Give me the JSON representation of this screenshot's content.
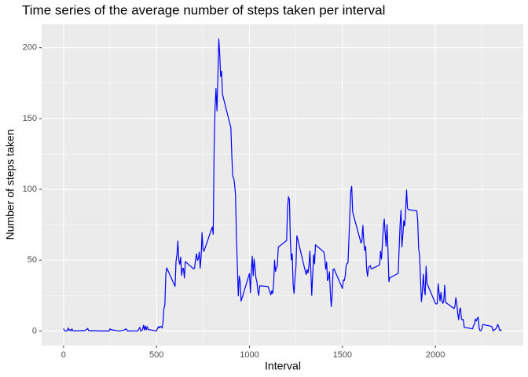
{
  "chart_data": {
    "type": "line",
    "title": "Time series of the average number of steps taken per interval",
    "x_label": "Interval",
    "y_label": "Number of steps taken",
    "xlim": [
      -117.75,
      2472.75
    ],
    "ylim": [
      -10.31,
      216.48
    ],
    "xticks": [
      0,
      500,
      1000,
      1500,
      2000
    ],
    "yticks": [
      0,
      50,
      100,
      150,
      200
    ],
    "xminor": [
      250,
      750,
      1250,
      1750,
      2250
    ],
    "yminor": [
      25,
      75,
      125,
      175
    ],
    "grid": true,
    "series": [
      {
        "color": "#0000ff",
        "x": [
          0,
          5,
          10,
          20,
          25,
          30,
          35,
          40,
          45,
          50,
          55,
          100,
          110,
          125,
          130,
          135,
          150,
          200,
          230,
          245,
          250,
          255,
          300,
          330,
          335,
          345,
          400,
          410,
          415,
          420,
          425,
          430,
          435,
          440,
          445,
          450,
          455,
          500,
          505,
          510,
          515,
          520,
          525,
          530,
          535,
          540,
          545,
          550,
          555,
          600,
          605,
          610,
          615,
          620,
          625,
          630,
          635,
          640,
          645,
          650,
          655,
          700,
          705,
          710,
          715,
          720,
          725,
          730,
          735,
          740,
          745,
          750,
          755,
          800,
          805,
          810,
          815,
          820,
          825,
          830,
          835,
          840,
          845,
          850,
          855,
          900,
          905,
          910,
          915,
          920,
          925,
          930,
          935,
          940,
          945,
          950,
          955,
          1000,
          1005,
          1010,
          1015,
          1020,
          1025,
          1030,
          1035,
          1040,
          1045,
          1050,
          1055,
          1100,
          1115,
          1120,
          1125,
          1130,
          1135,
          1140,
          1145,
          1150,
          1155,
          1200,
          1205,
          1210,
          1215,
          1220,
          1225,
          1230,
          1235,
          1240,
          1245,
          1250,
          1255,
          1300,
          1305,
          1310,
          1315,
          1320,
          1325,
          1330,
          1335,
          1340,
          1345,
          1350,
          1355,
          1400,
          1405,
          1410,
          1415,
          1420,
          1425,
          1430,
          1435,
          1440,
          1445,
          1450,
          1455,
          1500,
          1505,
          1510,
          1515,
          1520,
          1525,
          1530,
          1535,
          1540,
          1545,
          1550,
          1555,
          1600,
          1605,
          1610,
          1615,
          1620,
          1625,
          1630,
          1635,
          1640,
          1645,
          1650,
          1655,
          1700,
          1705,
          1710,
          1715,
          1720,
          1725,
          1730,
          1735,
          1740,
          1745,
          1750,
          1755,
          1800,
          1805,
          1810,
          1815,
          1820,
          1825,
          1830,
          1835,
          1840,
          1845,
          1850,
          1855,
          1900,
          1905,
          1910,
          1915,
          1920,
          1925,
          1930,
          1935,
          1940,
          1945,
          1950,
          1955,
          2000,
          2005,
          2010,
          2015,
          2020,
          2025,
          2030,
          2035,
          2040,
          2045,
          2050,
          2055,
          2100,
          2105,
          2110,
          2115,
          2120,
          2125,
          2130,
          2135,
          2140,
          2145,
          2150,
          2155,
          2200,
          2205,
          2210,
          2215,
          2220,
          2225,
          2230,
          2235,
          2240,
          2245,
          2250,
          2255,
          2300,
          2305,
          2310,
          2315,
          2320,
          2325,
          2330,
          2335,
          2340,
          2345,
          2350,
          2355
        ],
        "values": [
          1.7,
          0.3,
          0.1,
          0.1,
          2.1,
          0.5,
          0.9,
          0,
          1.5,
          0.3,
          0.1,
          0.3,
          0.2,
          1.1,
          1.8,
          0.2,
          0.3,
          0,
          0,
          0,
          1.5,
          0.9,
          0,
          0.8,
          1.6,
          0,
          0.1,
          2.6,
          0,
          0.3,
          1.1,
          4.1,
          0.7,
          3.5,
          0.8,
          3.1,
          1.1,
          0,
          1.6,
          3.0,
          2.2,
          3.3,
          3.0,
          2.1,
          6.1,
          16.0,
          18.3,
          39.5,
          44.5,
          31.5,
          49.3,
          53.8,
          63.5,
          50.0,
          47.1,
          52.2,
          39.3,
          44.0,
          44.2,
          37.4,
          49.0,
          43.8,
          44.4,
          50.5,
          54.5,
          49.9,
          51.0,
          55.7,
          44.3,
          52.3,
          69.5,
          57.8,
          56.2,
          73.4,
          68.2,
          129.4,
          157.5,
          171.2,
          155.4,
          177.3,
          206.2,
          195.9,
          179.6,
          183.4,
          167.0,
          143.5,
          124.0,
          109.1,
          108.1,
          103.7,
          95.9,
          66.2,
          45.2,
          24.8,
          38.8,
          35.0,
          21.1,
          40.6,
          27.0,
          42.4,
          52.7,
          38.9,
          50.8,
          44.3,
          37.4,
          34.7,
          28.3,
          25.1,
          31.9,
          31.4,
          25.5,
          28.4,
          26.5,
          33.4,
          50.0,
          42.0,
          44.6,
          46.0,
          59.2,
          63.9,
          87.7,
          94.8,
          92.8,
          63.4,
          50.2,
          54.5,
          32.4,
          26.5,
          37.7,
          45.1,
          67.3,
          42.3,
          39.9,
          43.3,
          41.0,
          46.2,
          56.4,
          42.8,
          25.1,
          39.5,
          53.8,
          47.4,
          60.8,
          55.8,
          52.0,
          43.6,
          48.7,
          35.5,
          37.5,
          41.8,
          27.5,
          17.1,
          26.1,
          43.6,
          43.8,
          30.0,
          36.1,
          35.5,
          38.8,
          46.0,
          47.8,
          48.1,
          65.3,
          82.9,
          98.7,
          102.1,
          84.0,
          62.1,
          64.1,
          74.5,
          63.2,
          56.9,
          59.8,
          43.9,
          38.6,
          44.7,
          45.5,
          46.2,
          43.7,
          46.6,
          56.3,
          50.7,
          61.2,
          73.4,
          79.0,
          68.9,
          59.7,
          75.1,
          56.5,
          34.8,
          37.5,
          40.7,
          58.0,
          74.7,
          85.3,
          59.3,
          67.8,
          77.7,
          74.2,
          85.3,
          99.5,
          86.6,
          85.6,
          84.9,
          77.8,
          58.0,
          53.4,
          36.3,
          20.7,
          27.4,
          40.0,
          30.2,
          25.5,
          45.7,
          33.5,
          19.6,
          19.0,
          19.3,
          33.3,
          26.8,
          21.2,
          27.3,
          21.3,
          19.5,
          21.3,
          32.3,
          20.2,
          15.9,
          17.2,
          23.5,
          19.2,
          12.5,
          8.0,
          14.7,
          16.3,
          8.7,
          7.8,
          8.1,
          2.6,
          1.5,
          3.7,
          4.8,
          8.5,
          7.1,
          8.7,
          9.8,
          2.2,
          0.3,
          0.1,
          1.6,
          4.6,
          3.3,
          2.8,
          0,
          0.8,
          1.0,
          1.6,
          2.6,
          4.7,
          3.3,
          0.6,
          0.2,
          1.1
        ]
      }
    ]
  }
}
